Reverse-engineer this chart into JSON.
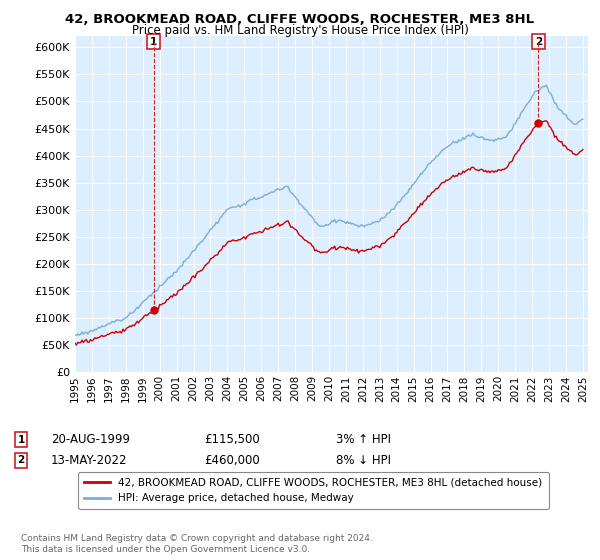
{
  "title": "42, BROOKMEAD ROAD, CLIFFE WOODS, ROCHESTER, ME3 8HL",
  "subtitle": "Price paid vs. HM Land Registry's House Price Index (HPI)",
  "legend_line1": "42, BROOKMEAD ROAD, CLIFFE WOODS, ROCHESTER, ME3 8HL (detached house)",
  "legend_line2": "HPI: Average price, detached house, Medway",
  "annotation1_date": "20-AUG-1999",
  "annotation1_price": "£115,500",
  "annotation1_hpi": "3% ↑ HPI",
  "annotation1_year": 1999.64,
  "annotation1_value": 115500,
  "annotation2_date": "13-MAY-2022",
  "annotation2_price": "£460,000",
  "annotation2_hpi": "8% ↓ HPI",
  "annotation2_year": 2022.37,
  "annotation2_value": 460000,
  "footer": "Contains HM Land Registry data © Crown copyright and database right 2024.\nThis data is licensed under the Open Government Licence v3.0.",
  "ylim_min": 0,
  "ylim_max": 620000,
  "hpi_color": "#7aadde",
  "price_color": "#cc0000",
  "chart_bg_color": "#ddeeff",
  "background_color": "#ffffff",
  "grid_color": "#ffffff",
  "annotation_dot_color": "#cc0000",
  "box_color": "#cc2222",
  "title_fontsize": 9.5,
  "subtitle_fontsize": 8.5
}
